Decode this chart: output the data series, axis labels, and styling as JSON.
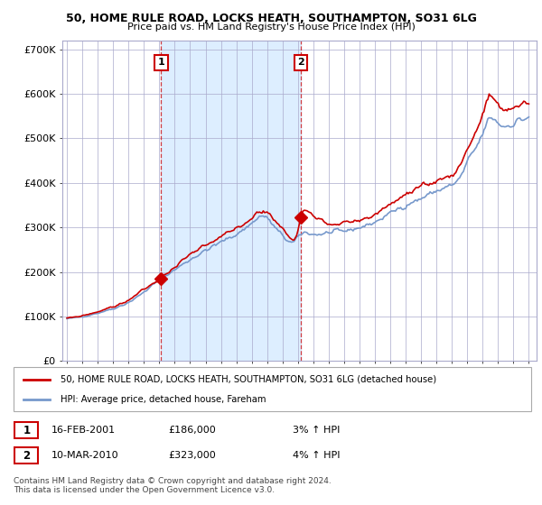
{
  "title": "50, HOME RULE ROAD, LOCKS HEATH, SOUTHAMPTON, SO31 6LG",
  "subtitle": "Price paid vs. HM Land Registry's House Price Index (HPI)",
  "legend_line1": "50, HOME RULE ROAD, LOCKS HEATH, SOUTHAMPTON, SO31 6LG (detached house)",
  "legend_line2": "HPI: Average price, detached house, Fareham",
  "annotation1_label": "1",
  "annotation1_date": "16-FEB-2001",
  "annotation1_price": "£186,000",
  "annotation1_hpi": "3% ↑ HPI",
  "annotation2_label": "2",
  "annotation2_date": "10-MAR-2010",
  "annotation2_price": "£323,000",
  "annotation2_hpi": "4% ↑ HPI",
  "footnote1": "Contains HM Land Registry data © Crown copyright and database right 2024.",
  "footnote2": "This data is licensed under the Open Government Licence v3.0.",
  "sale1_x": 2001.12,
  "sale1_y": 186000,
  "sale2_x": 2010.19,
  "sale2_y": 323000,
  "ylim": [
    0,
    720000
  ],
  "xlim": [
    1994.7,
    2025.5
  ],
  "yticks": [
    0,
    100000,
    200000,
    300000,
    400000,
    500000,
    600000,
    700000
  ],
  "ytick_labels": [
    "£0",
    "£100K",
    "£200K",
    "£300K",
    "£400K",
    "£500K",
    "£600K",
    "£700K"
  ],
  "red_color": "#cc0000",
  "blue_color": "#7799cc",
  "shade_color": "#ddeeff",
  "background_color": "#ffffff",
  "grid_color": "#aaaacc"
}
